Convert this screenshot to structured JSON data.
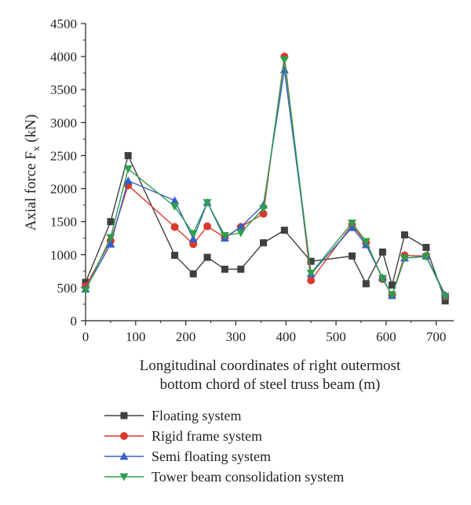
{
  "chart_data": {
    "type": "line",
    "xlabel_lines": [
      "Longitudinal coordinates of right outermost",
      "bottom chord of steel truss beam (m)"
    ],
    "ylabel": {
      "main": "Axial force F",
      "sub": "x",
      "unit": " (kN)"
    },
    "xlim": [
      0,
      735
    ],
    "ylim": [
      0,
      4500
    ],
    "xticks": [
      0,
      100,
      200,
      300,
      400,
      500,
      600,
      700
    ],
    "yticks": [
      0,
      500,
      1000,
      1500,
      2000,
      2500,
      3000,
      3500,
      4000,
      4500
    ],
    "grid": false,
    "legend_position": "bottom",
    "x": [
      0,
      50,
      85,
      178,
      215,
      243,
      278,
      310,
      355,
      397,
      450,
      532,
      560,
      593,
      612,
      637,
      680,
      718
    ],
    "series": [
      {
        "name": "Floating system",
        "color": "#404040",
        "marker": "square",
        "values": [
          580,
          1500,
          2500,
          990,
          710,
          960,
          780,
          780,
          1180,
          1370,
          900,
          980,
          560,
          1040,
          540,
          1300,
          1110,
          300
        ]
      },
      {
        "name": "Rigid frame system",
        "color": "#d93a2b",
        "marker": "circle",
        "values": [
          520,
          1210,
          2050,
          1420,
          1160,
          1430,
          1260,
          1420,
          1620,
          4000,
          610,
          1450,
          1180,
          630,
          390,
          990,
          980,
          370
        ]
      },
      {
        "name": "Semi floating system",
        "color": "#3a5fc8",
        "marker": "triangle-up",
        "values": [
          480,
          1160,
          2120,
          1820,
          1240,
          1790,
          1250,
          1420,
          1750,
          3800,
          710,
          1410,
          1150,
          650,
          380,
          950,
          980,
          390
        ]
      },
      {
        "name": "Tower beam consolidation system",
        "color": "#2e9e4a",
        "marker": "triangle-down",
        "values": [
          460,
          1260,
          2300,
          1730,
          1320,
          1790,
          1290,
          1330,
          1700,
          3950,
          720,
          1480,
          1200,
          640,
          390,
          950,
          970,
          370
        ]
      }
    ]
  }
}
